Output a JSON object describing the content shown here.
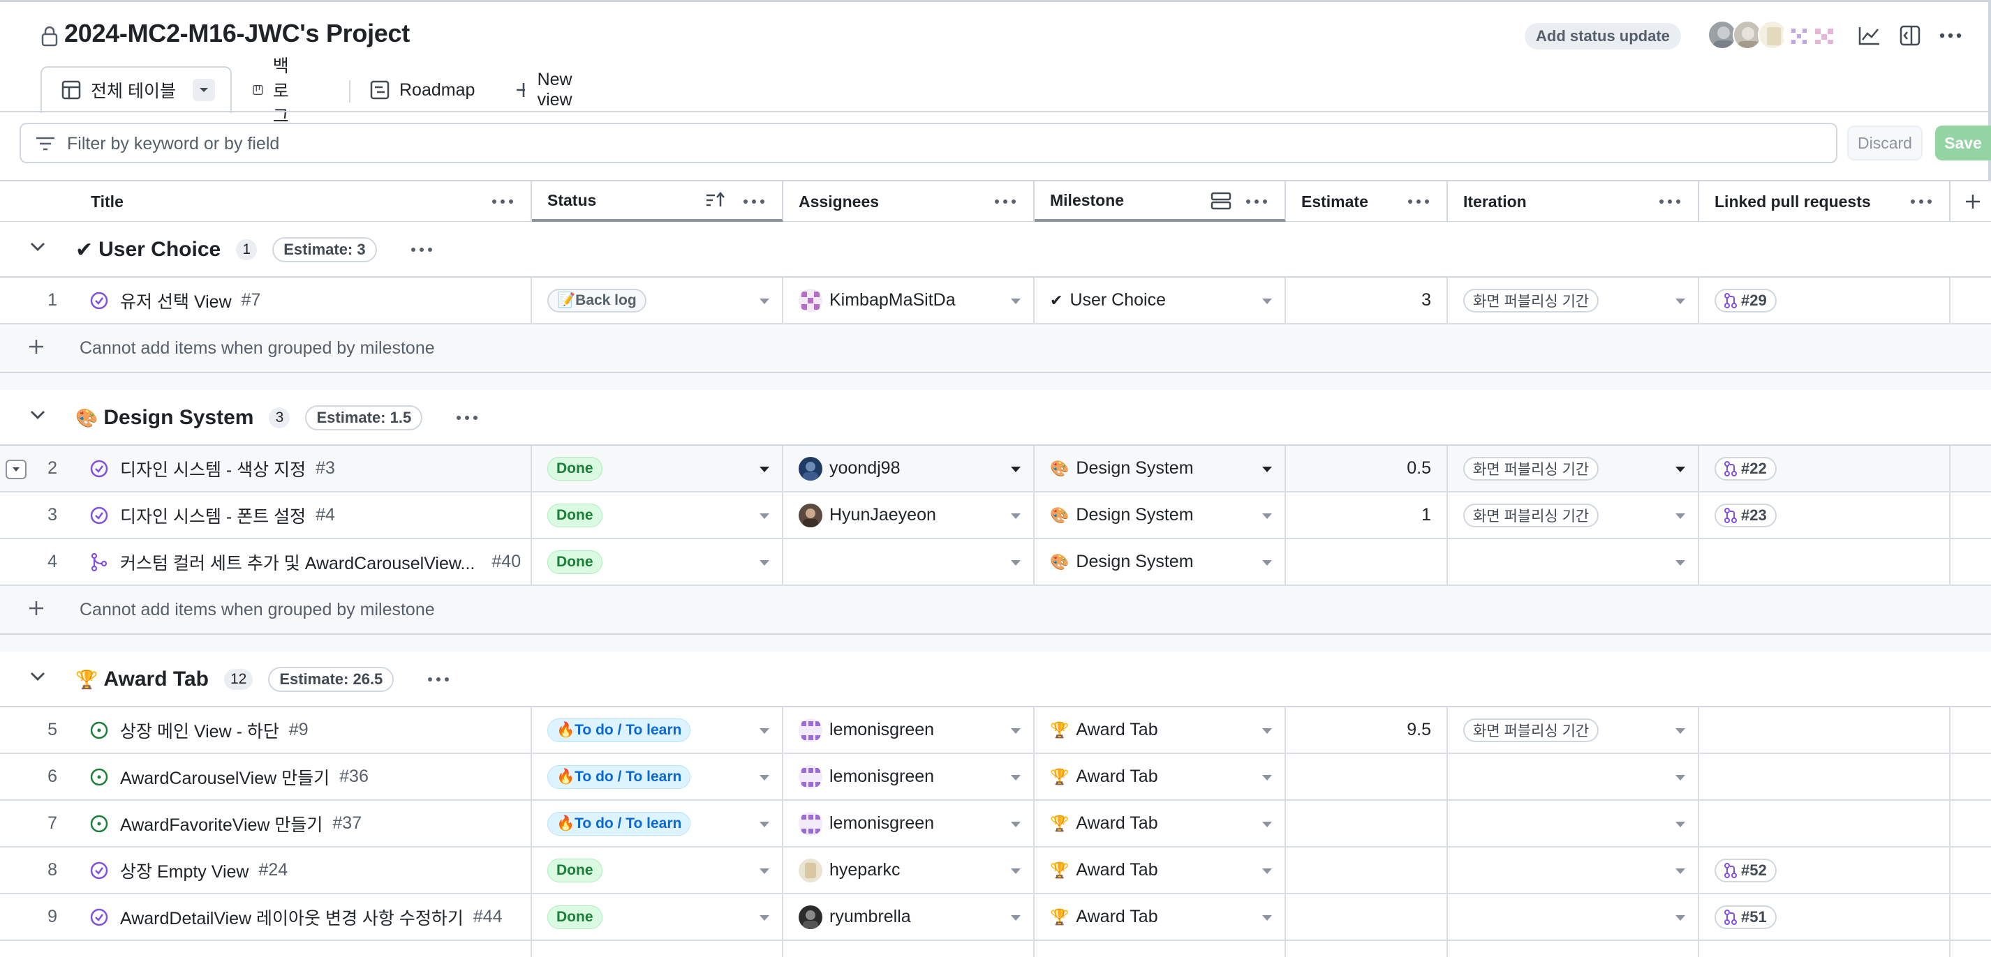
{
  "header": {
    "project_title": "2024-MC2-M16-JWC's Project",
    "status_update_label": "Add status update"
  },
  "tabs": [
    {
      "label": "전체 테이블",
      "icon": "table-icon"
    },
    {
      "label": "백로그",
      "icon": "board-icon"
    },
    {
      "label": "Roadmap",
      "icon": "roadmap-icon"
    },
    {
      "label": "New view",
      "icon": "plus-icon"
    }
  ],
  "filter": {
    "placeholder": "Filter by keyword or by field",
    "discard_label": "Discard",
    "save_label": "Save"
  },
  "columns": [
    "Title",
    "Status",
    "Assignees",
    "Milestone",
    "Estimate",
    "Iteration",
    "Linked pull requests"
  ],
  "groups": [
    {
      "emoji": "✔",
      "name": "User Choice",
      "count": "1",
      "estimate": "Estimate: 3",
      "add_text": "Cannot add items when grouped by milestone",
      "rows": [
        {
          "num": "1",
          "title": "유저 선택 View",
          "ref": "#7",
          "status": "📝Back log",
          "assignee": "KimbapMaSitDa",
          "milestone": "User Choice",
          "milestone_emoji": "✔",
          "estimate": "3",
          "iteration": "화면 퍼블리싱 기간",
          "pr": "#29"
        }
      ]
    },
    {
      "emoji": "🎨",
      "name": "Design System",
      "count": "3",
      "estimate": "Estimate: 1.5",
      "add_text": "Cannot add items when grouped by milestone",
      "rows": [
        {
          "num": "2",
          "title": "디자인 시스템 - 색상 지정",
          "ref": "#3",
          "status": "Done",
          "assignee": "yoondj98",
          "milestone": "Design System",
          "milestone_emoji": "🎨",
          "estimate": "0.5",
          "iteration": "화면 퍼블리싱 기간",
          "pr": "#22"
        },
        {
          "num": "3",
          "title": "디자인 시스템 - 폰트 설정",
          "ref": "#4",
          "status": "Done",
          "assignee": "HyunJaeyeon",
          "milestone": "Design System",
          "milestone_emoji": "🎨",
          "estimate": "1",
          "iteration": "화면 퍼블리싱 기간",
          "pr": "#23"
        },
        {
          "num": "4",
          "title": "커스텀 컬러 세트 추가 및 AwardCarouselView...",
          "ref": "#40",
          "status": "Done",
          "assignee": "",
          "milestone": "Design System",
          "milestone_emoji": "🎨",
          "estimate": "",
          "iteration": "",
          "pr": ""
        }
      ]
    },
    {
      "emoji": "🏆",
      "name": "Award Tab",
      "count": "12",
      "estimate": "Estimate: 26.5",
      "rows": [
        {
          "num": "5",
          "title": "상장 메인 View - 하단",
          "ref": "#9",
          "status": "🔥To do / To learn",
          "assignee": "lemonisgreen",
          "milestone": "Award Tab",
          "milestone_emoji": "🏆",
          "estimate": "9.5",
          "iteration": "화면 퍼블리싱 기간",
          "pr": ""
        },
        {
          "num": "6",
          "title": "AwardCarouselView 만들기",
          "ref": "#36",
          "status": "🔥To do / To learn",
          "assignee": "lemonisgreen",
          "milestone": "Award Tab",
          "milestone_emoji": "🏆",
          "estimate": "",
          "iteration": "",
          "pr": ""
        },
        {
          "num": "7",
          "title": "AwardFavoriteView 만들기",
          "ref": "#37",
          "status": "🔥To do / To learn",
          "assignee": "lemonisgreen",
          "milestone": "Award Tab",
          "milestone_emoji": "🏆",
          "estimate": "",
          "iteration": "",
          "pr": ""
        },
        {
          "num": "8",
          "title": "상장 Empty View",
          "ref": "#24",
          "status": "Done",
          "assignee": "hyeparkc",
          "milestone": "Award Tab",
          "milestone_emoji": "🏆",
          "estimate": "",
          "iteration": "",
          "pr": "#52"
        },
        {
          "num": "9",
          "title": "AwardDetailView 레이아웃 변경 사항 수정하기",
          "ref": "#44",
          "status": "Done",
          "assignee": "ryumbrella",
          "milestone": "Award Tab",
          "milestone_emoji": "🏆",
          "estimate": "",
          "iteration": "",
          "pr": "#51"
        }
      ]
    }
  ],
  "colors": {
    "done": "#1a7f37",
    "todo": "#0969da",
    "open_issue": "#1a7f37",
    "closed_issue": "#8250df"
  }
}
